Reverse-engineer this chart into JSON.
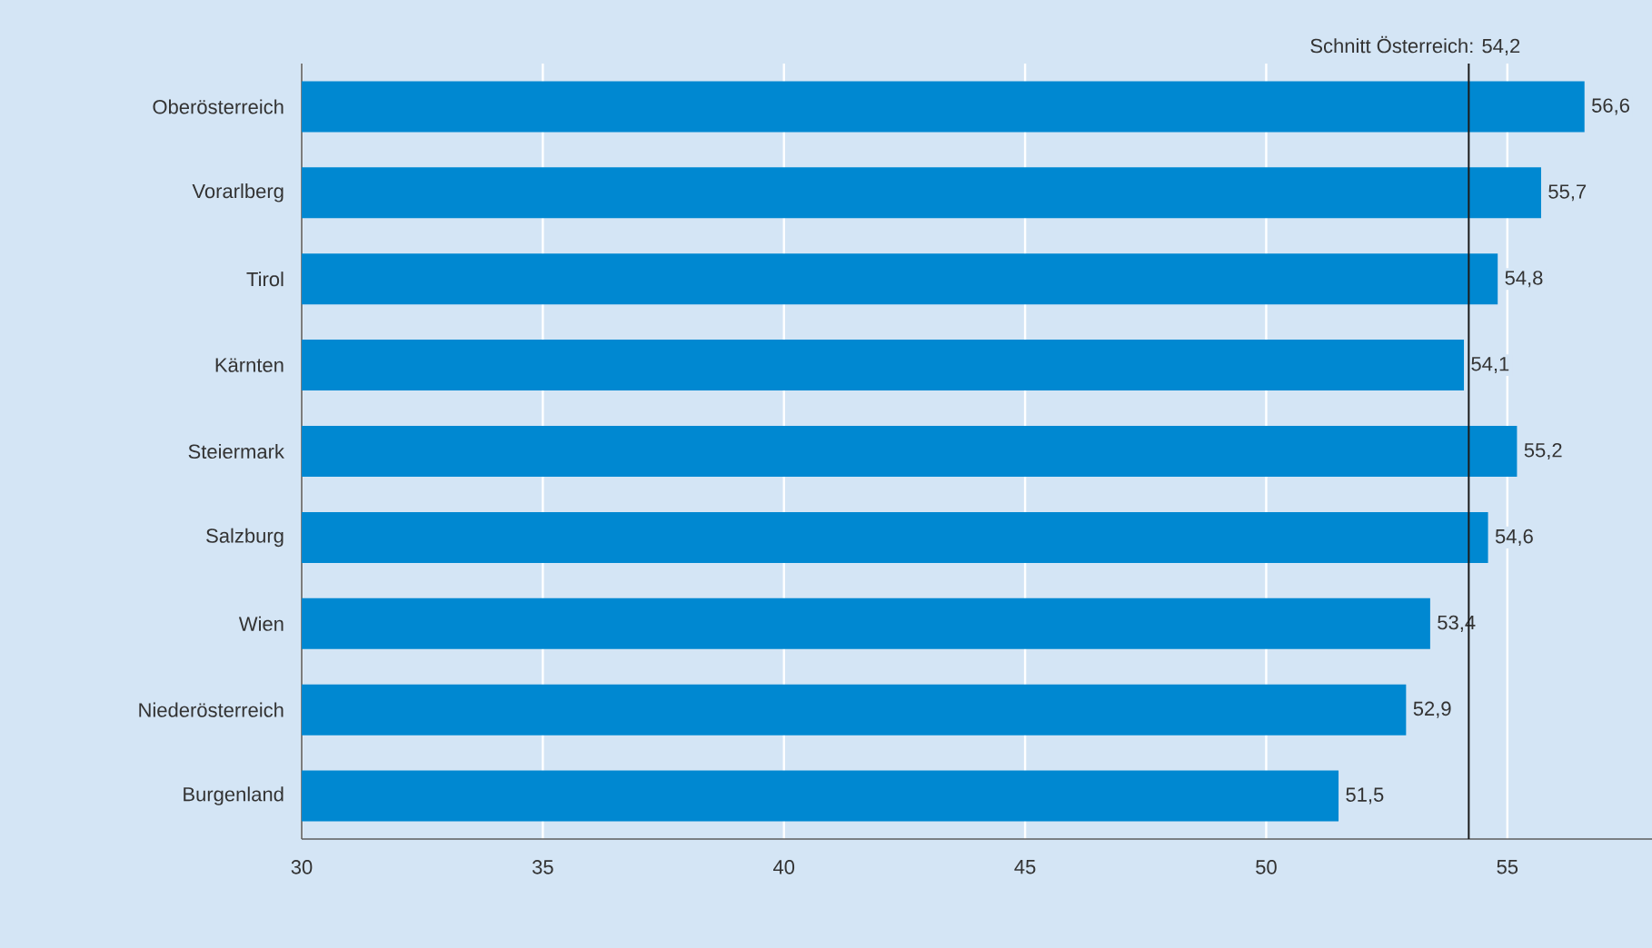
{
  "chart_data": {
    "type": "bar",
    "orientation": "horizontal",
    "categories": [
      "Oberösterreich",
      "Vorarlberg",
      "Tirol",
      "Kärnten",
      "Steiermark",
      "Salzburg",
      "Wien",
      "Niederösterreich",
      "Burgenland"
    ],
    "values": [
      56.6,
      55.7,
      54.8,
      54.1,
      55.2,
      54.6,
      53.4,
      52.9,
      51.5
    ],
    "value_labels": [
      "56,6",
      "55,7",
      "54,8",
      "54,1",
      "55,2",
      "54,6",
      "53,4",
      "52,9",
      "51,5"
    ],
    "color": "#0088d1",
    "xlim": [
      30,
      58
    ],
    "xticks": [
      30,
      35,
      40,
      45,
      50,
      55
    ],
    "grid": "x",
    "ref_lines": [
      {
        "axis": "x",
        "value": 54.2,
        "label": "Schnitt Österreich: 54,2",
        "color": "#1a1a1a"
      }
    ]
  }
}
